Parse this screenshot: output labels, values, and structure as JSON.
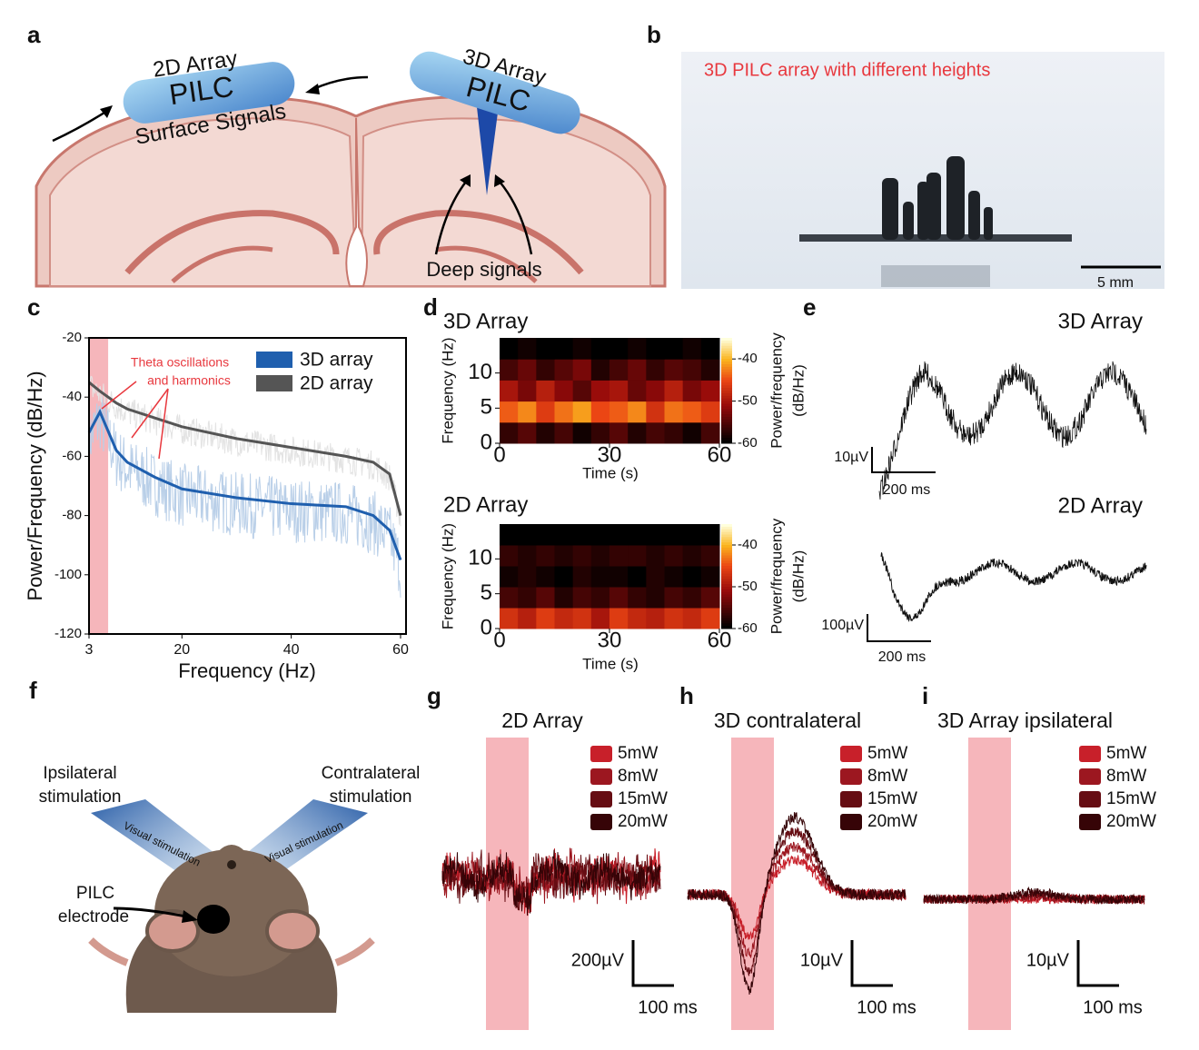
{
  "figure": {
    "a": {
      "label": "a",
      "array_2d": "2D Array",
      "pilc_2d": "PILC",
      "surface": "Surface Signals",
      "array_3d": "3D Array",
      "pilc_3d": "PILC",
      "deep": "Deep signals"
    },
    "b": {
      "label": "b",
      "caption": "3D PILC array with different heights",
      "scale_bar": "5 mm"
    },
    "c": {
      "label": "c"
    },
    "d": {
      "label": "d"
    },
    "e": {
      "label": "e",
      "traces": [
        {
          "title": "3D Array",
          "scale_y": "10µV",
          "scale_x": "200 ms"
        },
        {
          "title": "2D Array",
          "scale_y": "100µV",
          "scale_x": "200 ms"
        }
      ]
    },
    "f": {
      "label": "f",
      "ipsi": [
        "Ipsilateral",
        "stimulation"
      ],
      "contra": [
        "Contralateral",
        "stimulation"
      ],
      "visual_left": "Visual stimulation",
      "visual_right": "Visual stimulation",
      "electrode": [
        "PILC",
        "electrode"
      ]
    },
    "evoked": [
      {
        "label": "g",
        "title": "2D Array",
        "scale_y": "200µV",
        "scale_x": "100 ms"
      },
      {
        "label": "h",
        "title": "3D contralateral",
        "scale_y": "10µV",
        "scale_x": "100 ms"
      },
      {
        "label": "i",
        "title": "3D Array ipsilateral",
        "scale_y": "10µV",
        "scale_x": "100 ms"
      }
    ],
    "powers": [
      {
        "name": "5mW",
        "color": "#c8202a"
      },
      {
        "name": "8mW",
        "color": "#9c1720"
      },
      {
        "name": "15mW",
        "color": "#660d13"
      },
      {
        "name": "20mW",
        "color": "#360407"
      }
    ]
  },
  "chart_data": [
    {
      "type": "line",
      "xlabel": "Frequency (Hz)",
      "ylabel": "Power/Frequency (dB/Hz)",
      "xlim": [
        3,
        61
      ],
      "ylim": [
        -120,
        -20
      ],
      "xticks": [
        3,
        20,
        40,
        60
      ],
      "yticks": [
        -20,
        -40,
        -60,
        -80,
        -100,
        -120
      ],
      "annotation": [
        "Theta oscillations",
        "and harmonics"
      ],
      "shaded_range": [
        3,
        6.5
      ],
      "legend": "upper right",
      "x": [
        3,
        5,
        8,
        10,
        15,
        20,
        30,
        40,
        50,
        55,
        58,
        60
      ],
      "series": [
        {
          "name": "3D array",
          "color": "#1f5fae",
          "values": [
            -52,
            -45,
            -58,
            -62,
            -67,
            -71,
            -74,
            -76,
            -77,
            -80,
            -85,
            -95
          ]
        },
        {
          "name": "2D array",
          "color": "#555555",
          "values": [
            -35,
            -38,
            -42,
            -44,
            -47,
            -50,
            -54,
            -57,
            -60,
            -62,
            -66,
            -80
          ]
        }
      ]
    },
    {
      "type": "heatmap",
      "title": "3D Array",
      "xlabel": "Time (s)",
      "ylabel": "Frequency (Hz)",
      "xlim": [
        0,
        60
      ],
      "ylim": [
        0,
        15
      ],
      "xticks": [
        0,
        30,
        60
      ],
      "yticks": [
        0,
        5,
        10
      ],
      "colorbar_label": [
        "Power/frequency",
        "(dB/Hz)"
      ],
      "clim": [
        -60,
        -35
      ],
      "cticks": [
        -40,
        -50,
        -60
      ],
      "z": [
        [
          -57,
          -55,
          -58,
          -56,
          -59,
          -57,
          -55,
          -58,
          -56,
          -57,
          -59,
          -56
        ],
        [
          -44,
          -42,
          -46,
          -43,
          -41,
          -45,
          -44,
          -42,
          -47,
          -43,
          -44,
          -46
        ],
        [
          -50,
          -53,
          -49,
          -52,
          -55,
          -51,
          -50,
          -54,
          -52,
          -49,
          -53,
          -51
        ],
        [
          -56,
          -54,
          -57,
          -55,
          -53,
          -58,
          -56,
          -54,
          -57,
          -55,
          -56,
          -58
        ],
        [
          -60,
          -59,
          -60,
          -60,
          -59,
          -60,
          -60,
          -59,
          -60,
          -60,
          -59,
          -60
        ]
      ]
    },
    {
      "type": "heatmap",
      "title": "2D Array",
      "xlabel": "Time (s)",
      "ylabel": "Frequency (Hz)",
      "xlim": [
        0,
        60
      ],
      "ylim": [
        0,
        15
      ],
      "xticks": [
        0,
        30,
        60
      ],
      "yticks": [
        0,
        5,
        10
      ],
      "colorbar_label": [
        "Power/frequency",
        "(dB/Hz)"
      ],
      "clim": [
        -60,
        -35
      ],
      "cticks": [
        -40,
        -50,
        -60
      ],
      "z": [
        [
          -47,
          -49,
          -46,
          -48,
          -47,
          -50,
          -46,
          -48,
          -49,
          -47,
          -48,
          -46
        ],
        [
          -56,
          -57,
          -55,
          -58,
          -56,
          -57,
          -55,
          -57,
          -58,
          -56,
          -57,
          -55
        ],
        [
          -59,
          -58,
          -59,
          -60,
          -58,
          -59,
          -59,
          -60,
          -58,
          -59,
          -60,
          -59
        ],
        [
          -57,
          -58,
          -57,
          -58,
          -57,
          -58,
          -57,
          -57,
          -58,
          -57,
          -58,
          -57
        ],
        [
          -60,
          -60,
          -60,
          -60,
          -60,
          -60,
          -60,
          -60,
          -60,
          -60,
          -60,
          -60
        ]
      ]
    }
  ]
}
